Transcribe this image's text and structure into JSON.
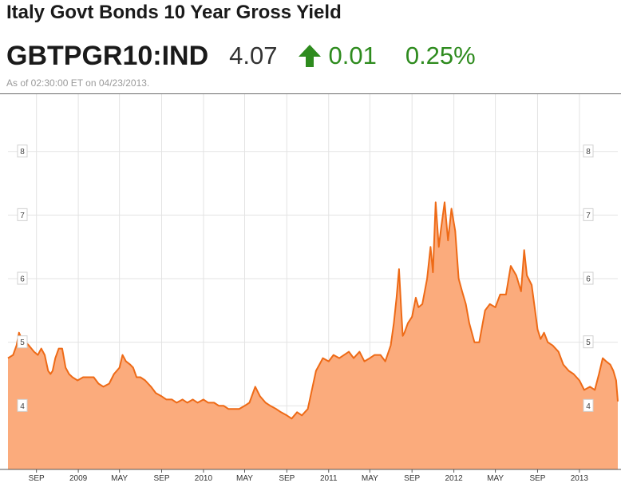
{
  "header": {
    "title": "Italy Govt Bonds 10 Year Gross Yield",
    "ticker": "GBTPGR10:IND",
    "price": "4.07",
    "change": "0.01",
    "change_pct": "0.25%",
    "direction_icon": "up-arrow-icon",
    "up_color": "#2e8b1e",
    "as_of": "As of 02:30:00 ET on 04/23/2013."
  },
  "chart_data": {
    "type": "area",
    "title": "",
    "xlabel": "",
    "ylabel": "",
    "grid": true,
    "ylim": [
      3.0,
      8.9
    ],
    "xlim": [
      "2008-06-10",
      "2013-04-23"
    ],
    "y_ticks": [
      "4",
      "5",
      "6",
      "7",
      "8"
    ],
    "x_ticks": [
      {
        "label": "SEP",
        "date": "2008-09-01"
      },
      {
        "label": "2009",
        "date": "2009-01-01"
      },
      {
        "label": "MAY",
        "date": "2009-05-01"
      },
      {
        "label": "SEP",
        "date": "2009-09-01"
      },
      {
        "label": "2010",
        "date": "2010-01-01"
      },
      {
        "label": "MAY",
        "date": "2010-05-01"
      },
      {
        "label": "SEP",
        "date": "2010-09-01"
      },
      {
        "label": "2011",
        "date": "2011-01-01"
      },
      {
        "label": "MAY",
        "date": "2011-05-01"
      },
      {
        "label": "SEP",
        "date": "2011-09-01"
      },
      {
        "label": "2012",
        "date": "2012-01-01"
      },
      {
        "label": "MAY",
        "date": "2012-05-01"
      },
      {
        "label": "SEP",
        "date": "2012-09-01"
      },
      {
        "label": "2013",
        "date": "2013-01-01"
      }
    ],
    "line_color": "#ee6a16",
    "fill_color": "#fbab7c",
    "series": [
      {
        "x": [
          "2008-06-10",
          "2008-06-25",
          "2008-07-05",
          "2008-07-12",
          "2008-07-20",
          "2008-08-01",
          "2008-08-10",
          "2008-08-25",
          "2008-09-05",
          "2008-09-15",
          "2008-09-25",
          "2008-10-05",
          "2008-10-12",
          "2008-10-18",
          "2008-10-26",
          "2008-11-05",
          "2008-11-15",
          "2008-11-25",
          "2008-12-05",
          "2008-12-15",
          "2008-12-30",
          "2009-01-15",
          "2009-02-01",
          "2009-02-15",
          "2009-03-01",
          "2009-03-15",
          "2009-04-01",
          "2009-04-15",
          "2009-05-01",
          "2009-05-10",
          "2009-05-20",
          "2009-06-01",
          "2009-06-10",
          "2009-06-20",
          "2009-07-01",
          "2009-07-15",
          "2009-08-01",
          "2009-08-15",
          "2009-09-01",
          "2009-09-15",
          "2009-10-01",
          "2009-10-15",
          "2009-11-01",
          "2009-11-15",
          "2009-12-01",
          "2009-12-15",
          "2010-01-01",
          "2010-01-15",
          "2010-02-01",
          "2010-02-15",
          "2010-03-01",
          "2010-03-15",
          "2010-04-01",
          "2010-04-15",
          "2010-05-01",
          "2010-05-15",
          "2010-06-01",
          "2010-06-15",
          "2010-07-01",
          "2010-07-15",
          "2010-08-01",
          "2010-08-15",
          "2010-09-01",
          "2010-09-15",
          "2010-10-01",
          "2010-10-15",
          "2010-11-01",
          "2010-11-15",
          "2010-11-25",
          "2010-12-05",
          "2010-12-15",
          "2011-01-01",
          "2011-01-15",
          "2011-02-01",
          "2011-02-15",
          "2011-03-01",
          "2011-03-15",
          "2011-04-01",
          "2011-04-15",
          "2011-05-01",
          "2011-05-15",
          "2011-06-01",
          "2011-06-15",
          "2011-07-01",
          "2011-07-10",
          "2011-07-18",
          "2011-07-25",
          "2011-08-01",
          "2011-08-05",
          "2011-08-10",
          "2011-08-20",
          "2011-09-01",
          "2011-09-12",
          "2011-09-20",
          "2011-10-01",
          "2011-10-15",
          "2011-10-25",
          "2011-11-01",
          "2011-11-09",
          "2011-11-18",
          "2011-11-25",
          "2011-12-05",
          "2011-12-15",
          "2011-12-25",
          "2012-01-05",
          "2012-01-15",
          "2012-01-25",
          "2012-02-05",
          "2012-02-15",
          "2012-03-01",
          "2012-03-15",
          "2012-04-01",
          "2012-04-15",
          "2012-05-01",
          "2012-05-15",
          "2012-06-01",
          "2012-06-15",
          "2012-07-01",
          "2012-07-15",
          "2012-07-24",
          "2012-08-01",
          "2012-08-15",
          "2012-09-01",
          "2012-09-10",
          "2012-09-20",
          "2012-10-01",
          "2012-10-15",
          "2012-11-01",
          "2012-11-15",
          "2012-12-01",
          "2012-12-15",
          "2013-01-01",
          "2013-01-15",
          "2013-02-01",
          "2013-02-15",
          "2013-02-27",
          "2013-03-10",
          "2013-03-20",
          "2013-04-01",
          "2013-04-10",
          "2013-04-18",
          "2013-04-23"
        ],
        "values": [
          4.75,
          4.8,
          4.95,
          5.15,
          5.05,
          5.0,
          4.95,
          4.85,
          4.8,
          4.9,
          4.8,
          4.55,
          4.5,
          4.55,
          4.75,
          4.9,
          4.9,
          4.6,
          4.5,
          4.45,
          4.4,
          4.45,
          4.45,
          4.45,
          4.35,
          4.3,
          4.35,
          4.5,
          4.6,
          4.8,
          4.7,
          4.65,
          4.6,
          4.45,
          4.45,
          4.4,
          4.3,
          4.2,
          4.15,
          4.1,
          4.1,
          4.05,
          4.1,
          4.05,
          4.1,
          4.05,
          4.1,
          4.05,
          4.05,
          4.0,
          4.0,
          3.95,
          3.95,
          3.95,
          4.0,
          4.05,
          4.3,
          4.15,
          4.05,
          4.0,
          3.95,
          3.9,
          3.85,
          3.8,
          3.9,
          3.85,
          3.95,
          4.3,
          4.55,
          4.65,
          4.75,
          4.7,
          4.8,
          4.75,
          4.8,
          4.85,
          4.75,
          4.85,
          4.7,
          4.75,
          4.8,
          4.8,
          4.7,
          4.95,
          5.3,
          5.7,
          6.15,
          5.45,
          5.1,
          5.15,
          5.3,
          5.4,
          5.7,
          5.55,
          5.6,
          6.0,
          6.5,
          6.1,
          7.2,
          6.5,
          6.8,
          7.2,
          6.6,
          7.1,
          6.75,
          6.0,
          5.8,
          5.6,
          5.3,
          5.0,
          5.0,
          5.5,
          5.6,
          5.55,
          5.75,
          5.75,
          6.2,
          6.05,
          5.8,
          6.45,
          6.05,
          5.9,
          5.2,
          5.05,
          5.15,
          5.0,
          4.95,
          4.85,
          4.65,
          4.55,
          4.5,
          4.4,
          4.25,
          4.3,
          4.25,
          4.5,
          4.75,
          4.7,
          4.65,
          4.55,
          4.4,
          4.07
        ]
      }
    ]
  }
}
